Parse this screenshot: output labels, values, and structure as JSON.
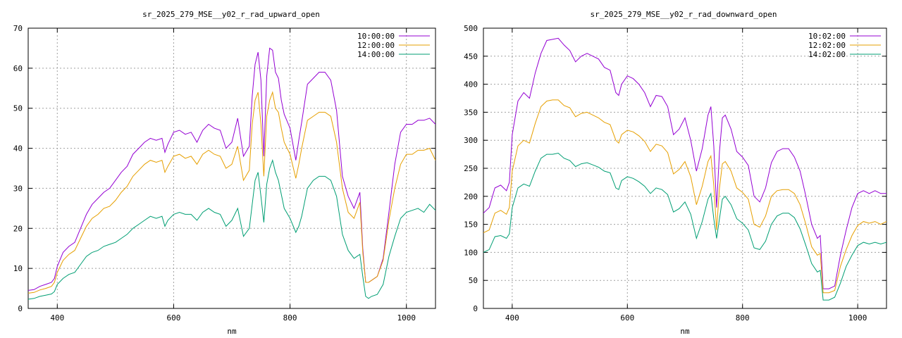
{
  "chart_data": [
    {
      "type": "line",
      "title": "sr_2025_279_MSE__y02_r_rad_upward_open",
      "xlabel": "nm",
      "ylabel": "",
      "xlim": [
        350,
        1050
      ],
      "ylim": [
        0,
        70
      ],
      "xticks": [
        400,
        600,
        800,
        1000
      ],
      "yticks": [
        0,
        10,
        20,
        30,
        40,
        50,
        60,
        70
      ],
      "grid": true,
      "legend_position": "top-right",
      "series": [
        {
          "name": "10:00:00",
          "color": "#9400d3",
          "x": [
            350,
            360,
            370,
            380,
            390,
            395,
            400,
            410,
            420,
            430,
            440,
            450,
            460,
            470,
            480,
            490,
            500,
            510,
            520,
            530,
            540,
            550,
            560,
            570,
            580,
            585,
            590,
            600,
            610,
            620,
            630,
            640,
            650,
            660,
            670,
            680,
            690,
            700,
            710,
            720,
            730,
            735,
            740,
            745,
            750,
            755,
            760,
            765,
            770,
            775,
            780,
            785,
            790,
            800,
            810,
            815,
            820,
            830,
            840,
            850,
            860,
            870,
            880,
            890,
            900,
            910,
            920,
            925,
            930,
            935,
            940,
            950,
            960,
            970,
            980,
            990,
            1000,
            1010,
            1020,
            1030,
            1040,
            1050
          ],
          "values": [
            4.5,
            4.7,
            5.5,
            6.0,
            6.5,
            7.5,
            10.5,
            14.0,
            15.5,
            16.5,
            20.0,
            23.5,
            26.0,
            27.5,
            29.0,
            30.0,
            32.0,
            34.0,
            35.5,
            38.5,
            40.0,
            41.5,
            42.5,
            42.0,
            42.5,
            39.0,
            41.0,
            44.0,
            44.5,
            43.5,
            44.0,
            41.5,
            44.5,
            46.0,
            45.0,
            44.5,
            40.0,
            41.5,
            47.5,
            38.0,
            40.5,
            53.0,
            61.0,
            64.0,
            57.0,
            38.0,
            58.0,
            65.0,
            64.5,
            59.0,
            57.5,
            52.0,
            48.5,
            45.0,
            37.0,
            42.0,
            46.5,
            56.0,
            57.5,
            59.0,
            59.0,
            57.0,
            49.5,
            33.0,
            28.0,
            25.0,
            29.0,
            15.0,
            6.5,
            6.5,
            7.0,
            8.0,
            12.5,
            24.0,
            36.0,
            44.0,
            46.0,
            46.0,
            47.0,
            47.0,
            47.5,
            46.0
          ]
        },
        {
          "name": "12:00:00",
          "color": "#e69f00",
          "x": [
            350,
            360,
            370,
            380,
            390,
            395,
            400,
            410,
            420,
            430,
            440,
            450,
            460,
            470,
            480,
            490,
            500,
            510,
            520,
            530,
            540,
            550,
            560,
            570,
            580,
            585,
            590,
            600,
            610,
            620,
            630,
            640,
            650,
            660,
            670,
            680,
            690,
            700,
            710,
            720,
            730,
            735,
            740,
            745,
            750,
            755,
            760,
            765,
            770,
            775,
            780,
            785,
            790,
            800,
            810,
            815,
            820,
            830,
            840,
            850,
            860,
            870,
            880,
            890,
            900,
            910,
            920,
            925,
            930,
            935,
            940,
            950,
            960,
            970,
            980,
            990,
            1000,
            1010,
            1020,
            1030,
            1040,
            1050
          ],
          "values": [
            3.8,
            4.0,
            4.6,
            5.0,
            5.5,
            6.5,
            9.0,
            12.0,
            13.5,
            14.5,
            17.5,
            20.5,
            22.5,
            23.5,
            25.0,
            25.5,
            27.0,
            29.0,
            30.5,
            33.0,
            34.5,
            36.0,
            37.0,
            36.5,
            37.0,
            34.0,
            35.5,
            38.0,
            38.5,
            37.5,
            38.0,
            36.0,
            38.5,
            39.5,
            38.5,
            38.0,
            35.0,
            36.0,
            40.5,
            32.0,
            34.5,
            46.0,
            52.0,
            54.0,
            46.0,
            33.0,
            48.0,
            52.0,
            54.0,
            50.0,
            49.0,
            45.0,
            41.5,
            38.5,
            32.5,
            36.0,
            40.0,
            47.0,
            48.0,
            49.0,
            49.0,
            48.0,
            41.5,
            30.0,
            24.0,
            22.5,
            26.5,
            14.0,
            6.5,
            6.5,
            7.0,
            8.0,
            12.0,
            22.0,
            30.0,
            36.0,
            38.5,
            38.5,
            39.5,
            39.5,
            40.0,
            37.0
          ]
        },
        {
          "name": "14:00:00",
          "color": "#009e73",
          "x": [
            350,
            360,
            370,
            380,
            390,
            395,
            400,
            410,
            420,
            430,
            440,
            450,
            460,
            470,
            480,
            490,
            500,
            510,
            520,
            530,
            540,
            550,
            560,
            570,
            580,
            585,
            590,
            600,
            610,
            620,
            630,
            640,
            650,
            660,
            670,
            680,
            690,
            700,
            710,
            720,
            730,
            735,
            740,
            745,
            750,
            755,
            760,
            765,
            770,
            775,
            780,
            785,
            790,
            800,
            810,
            815,
            820,
            830,
            840,
            850,
            860,
            870,
            880,
            890,
            900,
            910,
            920,
            925,
            930,
            935,
            940,
            950,
            960,
            970,
            980,
            990,
            1000,
            1010,
            1020,
            1030,
            1040,
            1050
          ],
          "values": [
            2.3,
            2.5,
            3.0,
            3.3,
            3.6,
            4.2,
            6.0,
            7.5,
            8.5,
            9.0,
            11.0,
            13.0,
            14.0,
            14.5,
            15.5,
            16.0,
            16.5,
            17.5,
            18.5,
            20.0,
            21.0,
            22.0,
            23.0,
            22.5,
            23.0,
            20.5,
            22.0,
            23.5,
            24.0,
            23.5,
            23.5,
            22.0,
            24.0,
            25.0,
            24.0,
            23.5,
            20.5,
            22.0,
            25.0,
            18.0,
            20.0,
            26.0,
            32.0,
            34.0,
            28.0,
            21.5,
            31.0,
            35.0,
            37.0,
            34.0,
            32.0,
            28.5,
            25.0,
            22.5,
            19.0,
            20.5,
            23.0,
            30.0,
            32.0,
            33.0,
            33.0,
            32.0,
            28.0,
            18.5,
            14.5,
            12.5,
            13.5,
            8.0,
            3.0,
            2.5,
            3.0,
            3.5,
            6.0,
            13.0,
            18.0,
            22.5,
            24.0,
            24.5,
            25.0,
            24.0,
            26.0,
            24.5
          ]
        }
      ]
    },
    {
      "type": "line",
      "title": "sr_2025_279_MSE__y02_r_rad_downward_open",
      "xlabel": "nm",
      "ylabel": "",
      "xlim": [
        350,
        1050
      ],
      "ylim": [
        0,
        500
      ],
      "xticks": [
        400,
        600,
        800,
        1000
      ],
      "yticks": [
        0,
        50,
        100,
        150,
        200,
        250,
        300,
        350,
        400,
        450,
        500
      ],
      "grid": true,
      "legend_position": "top-right",
      "series": [
        {
          "name": "10:02:00",
          "color": "#9400d3",
          "x": [
            350,
            360,
            370,
            380,
            390,
            395,
            400,
            410,
            420,
            430,
            440,
            450,
            460,
            470,
            480,
            490,
            500,
            510,
            520,
            530,
            540,
            550,
            560,
            570,
            580,
            585,
            590,
            600,
            610,
            620,
            630,
            640,
            650,
            660,
            670,
            680,
            690,
            700,
            710,
            720,
            730,
            740,
            745,
            750,
            755,
            760,
            765,
            770,
            780,
            790,
            800,
            810,
            820,
            830,
            840,
            850,
            860,
            870,
            880,
            890,
            900,
            910,
            920,
            930,
            935,
            940,
            950,
            960,
            970,
            980,
            990,
            1000,
            1010,
            1020,
            1030,
            1040,
            1050
          ],
          "values": [
            170,
            180,
            215,
            220,
            210,
            225,
            310,
            370,
            385,
            375,
            420,
            455,
            478,
            480,
            482,
            470,
            460,
            440,
            450,
            455,
            450,
            445,
            430,
            425,
            385,
            380,
            400,
            415,
            410,
            400,
            385,
            360,
            380,
            378,
            360,
            310,
            320,
            340,
            300,
            245,
            285,
            345,
            360,
            290,
            180,
            280,
            340,
            345,
            320,
            280,
            270,
            255,
            200,
            190,
            215,
            260,
            280,
            285,
            285,
            270,
            245,
            200,
            150,
            125,
            130,
            35,
            35,
            40,
            95,
            140,
            180,
            205,
            210,
            205,
            210,
            205,
            205
          ]
        },
        {
          "name": "12:02:00",
          "color": "#e69f00",
          "x": [
            350,
            360,
            370,
            380,
            390,
            395,
            400,
            410,
            420,
            430,
            440,
            450,
            460,
            470,
            480,
            490,
            500,
            510,
            520,
            530,
            540,
            550,
            560,
            570,
            580,
            585,
            590,
            600,
            610,
            620,
            630,
            640,
            650,
            660,
            670,
            680,
            690,
            700,
            710,
            720,
            730,
            740,
            745,
            750,
            755,
            760,
            765,
            770,
            780,
            790,
            800,
            810,
            820,
            830,
            840,
            850,
            860,
            870,
            880,
            890,
            900,
            910,
            920,
            930,
            935,
            940,
            950,
            960,
            970,
            980,
            990,
            1000,
            1010,
            1020,
            1030,
            1040,
            1050
          ],
          "values": [
            135,
            140,
            170,
            175,
            168,
            180,
            245,
            290,
            300,
            295,
            330,
            360,
            370,
            372,
            372,
            362,
            358,
            342,
            348,
            350,
            345,
            340,
            332,
            328,
            300,
            295,
            310,
            318,
            315,
            308,
            298,
            280,
            293,
            290,
            278,
            240,
            248,
            262,
            235,
            185,
            218,
            262,
            272,
            220,
            140,
            215,
            258,
            262,
            245,
            215,
            207,
            195,
            150,
            145,
            165,
            200,
            210,
            212,
            212,
            205,
            185,
            150,
            110,
            95,
            98,
            28,
            28,
            32,
            75,
            105,
            130,
            148,
            155,
            152,
            155,
            150,
            155
          ]
        },
        {
          "name": "14:02:00",
          "color": "#009e73",
          "x": [
            350,
            360,
            370,
            380,
            390,
            395,
            400,
            410,
            420,
            430,
            440,
            450,
            460,
            470,
            480,
            490,
            500,
            510,
            520,
            530,
            540,
            550,
            560,
            570,
            580,
            585,
            590,
            600,
            610,
            620,
            630,
            640,
            650,
            660,
            670,
            680,
            690,
            700,
            710,
            720,
            730,
            740,
            745,
            750,
            755,
            760,
            765,
            770,
            780,
            790,
            800,
            810,
            820,
            830,
            840,
            850,
            860,
            870,
            880,
            890,
            900,
            910,
            920,
            930,
            935,
            940,
            950,
            960,
            970,
            980,
            990,
            1000,
            1010,
            1020,
            1030,
            1040,
            1050
          ],
          "values": [
            100,
            105,
            128,
            130,
            125,
            133,
            180,
            215,
            222,
            218,
            245,
            268,
            275,
            275,
            277,
            268,
            264,
            253,
            258,
            260,
            256,
            252,
            245,
            242,
            215,
            212,
            228,
            235,
            232,
            226,
            218,
            205,
            215,
            212,
            203,
            172,
            178,
            190,
            168,
            125,
            155,
            195,
            205,
            160,
            125,
            160,
            195,
            200,
            185,
            160,
            152,
            140,
            108,
            105,
            120,
            150,
            165,
            170,
            170,
            162,
            142,
            112,
            80,
            65,
            68,
            15,
            15,
            20,
            45,
            75,
            95,
            112,
            118,
            115,
            118,
            115,
            118
          ]
        }
      ]
    }
  ]
}
